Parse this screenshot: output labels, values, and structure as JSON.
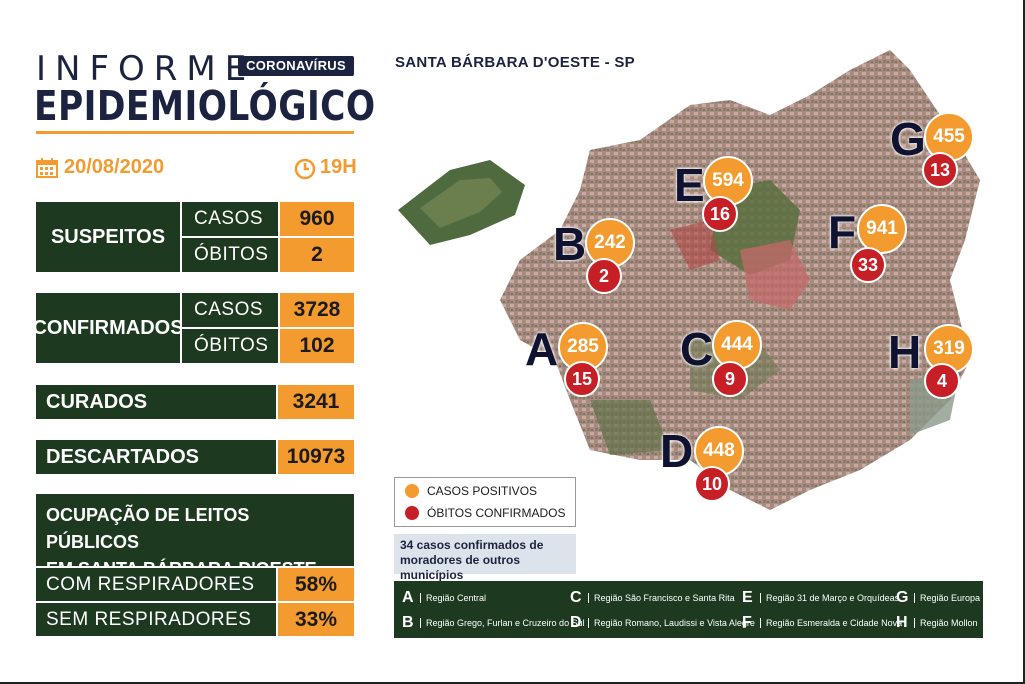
{
  "header": {
    "title_line1": "INFORME",
    "title_line2": "EPIDEMIOLÓGICO",
    "badge": "CORONAVÍRUS",
    "date": "20/08/2020",
    "hour": "19H"
  },
  "stats": {
    "suspeitos": {
      "label": "SUSPEITOS",
      "casos_label": "CASOS",
      "casos": "960",
      "obitos_label": "ÓBITOS",
      "obitos": "2"
    },
    "confirmados": {
      "label": "CONFIRMADOS",
      "casos_label": "CASOS",
      "casos": "3728",
      "obitos_label": "ÓBITOS",
      "obitos": "102"
    },
    "curados": {
      "label": "CURADOS",
      "value": "3241"
    },
    "descartados": {
      "label": "DESCARTADOS",
      "value": "10973"
    },
    "leitos": {
      "title_line1": "OCUPAÇÃO DE LEITOS PÚBLICOS",
      "title_line2": "EM SANTA BÁRBARA D'OESTE",
      "com_label": "COM RESPIRADORES",
      "com_value": "58%",
      "sem_label": "SEM RESPIRADORES",
      "sem_value": "33%"
    }
  },
  "map": {
    "title": "SANTA BÁRBARA D'OESTE - SP",
    "regions": [
      {
        "letter": "A",
        "cases": "285",
        "deaths": "15"
      },
      {
        "letter": "B",
        "cases": "242",
        "deaths": "2"
      },
      {
        "letter": "C",
        "cases": "444",
        "deaths": "9"
      },
      {
        "letter": "D",
        "cases": "448",
        "deaths": "10"
      },
      {
        "letter": "E",
        "cases": "594",
        "deaths": "16"
      },
      {
        "letter": "F",
        "cases": "941",
        "deaths": "33"
      },
      {
        "letter": "G",
        "cases": "455",
        "deaths": "13"
      },
      {
        "letter": "H",
        "cases": "319",
        "deaths": "4"
      }
    ]
  },
  "legend": {
    "positive": "CASOS POSITIVOS",
    "deaths": "ÓBITOS CONFIRMADOS",
    "note": "34 casos confirmados de moradores de outros municípios",
    "colors": {
      "positive": "#f39b2e",
      "deaths": "#c61f26",
      "panel": "#1d3a20",
      "navy": "#1b2340"
    }
  },
  "region_key": [
    {
      "letter": "A",
      "name": "Região Central"
    },
    {
      "letter": "B",
      "name": "Região Grego, Furlan e Cruzeiro do Sul"
    },
    {
      "letter": "C",
      "name": "Região São Francisco e Santa Rita"
    },
    {
      "letter": "D",
      "name": "Região Romano, Laudissi e Vista Alegre"
    },
    {
      "letter": "E",
      "name": "Região 31 de Março e Orquídeas"
    },
    {
      "letter": "F",
      "name": "Região Esmeralda e Cidade Nova"
    },
    {
      "letter": "G",
      "name": "Região Europa"
    },
    {
      "letter": "H",
      "name": "Região Mollon"
    }
  ],
  "icons": {
    "date": "calendar-icon",
    "hour": "clock-icon"
  }
}
